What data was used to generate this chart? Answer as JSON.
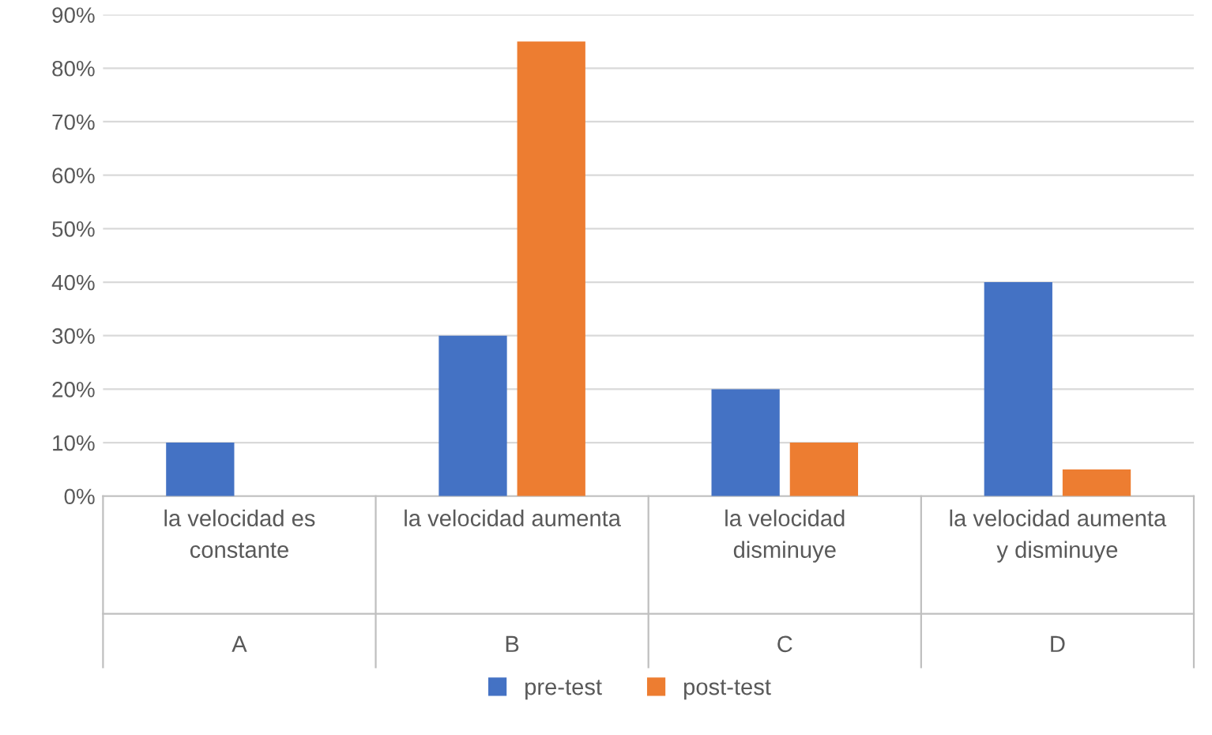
{
  "chart_data": {
    "type": "bar",
    "categories": [
      "la velocidad es\nconstante\nA",
      "la velocidad aumenta\n\nB",
      "la velocidad\ndisminuye\nC",
      "la velocidad aumenta\ny disminuye\nD"
    ],
    "series": [
      {
        "name": "pre-test",
        "color": "#4472c4",
        "values": [
          10,
          30,
          20,
          40
        ]
      },
      {
        "name": "post-test",
        "color": "#ed7d31",
        "values": [
          0,
          85,
          10,
          5
        ]
      }
    ],
    "ylim": [
      0,
      90
    ],
    "yticks": [
      {
        "value": 0,
        "label": "0%"
      },
      {
        "value": 10,
        "label": "10%"
      },
      {
        "value": 20,
        "label": "20%"
      },
      {
        "value": 30,
        "label": "30%"
      },
      {
        "value": 40,
        "label": "40%"
      },
      {
        "value": 50,
        "label": "50%"
      },
      {
        "value": 60,
        "label": "60%"
      },
      {
        "value": 70,
        "label": "70%"
      },
      {
        "value": 80,
        "label": "80%"
      },
      {
        "value": 90,
        "label": "90%"
      }
    ],
    "grid": "y",
    "legend": "bottom"
  }
}
